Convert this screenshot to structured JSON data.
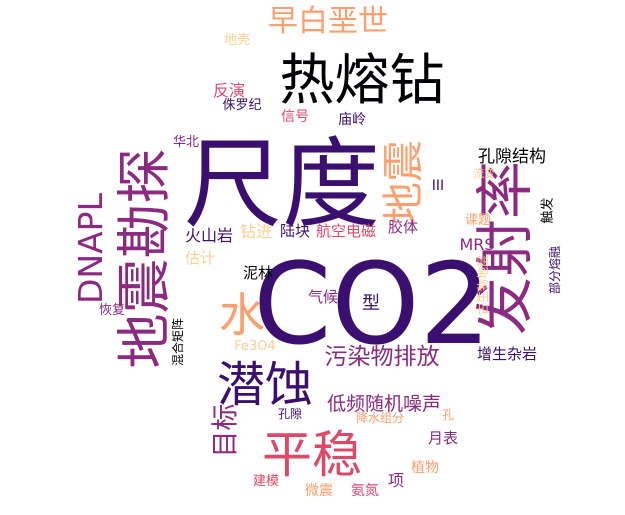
{
  "word_cloud": {
    "words": [
      {
        "text": "CO2",
        "color": "#3b0f70"
      },
      {
        "text": "尺度",
        "color": "#3b0f70"
      },
      {
        "text": "发射率",
        "color": "#8c2981"
      },
      {
        "text": "地震勘探",
        "color": "#8c2981"
      },
      {
        "text": "热熔钻",
        "color": "#000004"
      },
      {
        "text": "平稳",
        "color": "#de4968"
      },
      {
        "text": "潜蚀",
        "color": "#3b0f70"
      },
      {
        "text": "水",
        "color": "#fe9f6d"
      },
      {
        "text": "地震",
        "color": "#fe9f6d"
      },
      {
        "text": "早白垩世",
        "color": "#fe9f6d"
      },
      {
        "text": "DNAPL",
        "color": "#8c2981"
      },
      {
        "text": "目标",
        "color": "#8c2981"
      },
      {
        "text": "污染物排放",
        "color": "#8c2981"
      },
      {
        "text": "低频随机噪声",
        "color": "#8c2981"
      },
      {
        "text": "孔隙结构",
        "color": "#000004"
      },
      {
        "text": "反演",
        "color": "#de4968"
      },
      {
        "text": "MRS",
        "color": "#8c2981"
      },
      {
        "text": "火山岩",
        "color": "#3b0f70"
      },
      {
        "text": "钻进",
        "color": "#fecf92"
      },
      {
        "text": "陆块",
        "color": "#3b0f70"
      },
      {
        "text": "航空电磁",
        "color": "#de4968"
      },
      {
        "text": "胶体",
        "color": "#8c2981"
      },
      {
        "text": "增生杂岩",
        "color": "#3b0f70"
      },
      {
        "text": "型",
        "color": "#3b0f70"
      },
      {
        "text": "气候",
        "color": "#8c2981"
      },
      {
        "text": "估计",
        "color": "#fecf92"
      },
      {
        "text": "泥林",
        "color": "#000004"
      },
      {
        "text": "信号",
        "color": "#de4968"
      },
      {
        "text": "庙岭",
        "color": "#3b0f70"
      },
      {
        "text": "侏罗纪",
        "color": "#3b0f70"
      },
      {
        "text": "华北",
        "color": "#8c2981"
      },
      {
        "text": "地壳",
        "color": "#fecf92"
      },
      {
        "text": "III",
        "color": "#3b0f70"
      },
      {
        "text": "流变",
        "color": "#fecf92"
      },
      {
        "text": "触发",
        "color": "#000004"
      },
      {
        "text": "课题",
        "color": "#fe9f6d"
      },
      {
        "text": "部分熔融",
        "color": "#3b0f70"
      },
      {
        "text": "古生物地层",
        "color": "#fecf92"
      },
      {
        "text": "恢复",
        "color": "#8c2981"
      },
      {
        "text": "混合矩阵",
        "color": "#000004"
      },
      {
        "text": "Fe3O4",
        "color": "#fecf92"
      },
      {
        "text": "孔隙",
        "color": "#3b0f70"
      },
      {
        "text": "降水组分",
        "color": "#fe9f6d"
      },
      {
        "text": "孔",
        "color": "#fe9f6d"
      },
      {
        "text": "月表",
        "color": "#8c2981"
      },
      {
        "text": "植物",
        "color": "#fe9f6d"
      },
      {
        "text": "建模",
        "color": "#de4968"
      },
      {
        "text": "微震",
        "color": "#fe9f6d"
      },
      {
        "text": "氨氮",
        "color": "#de4968"
      },
      {
        "text": "项",
        "color": "#8c2981"
      }
    ]
  }
}
